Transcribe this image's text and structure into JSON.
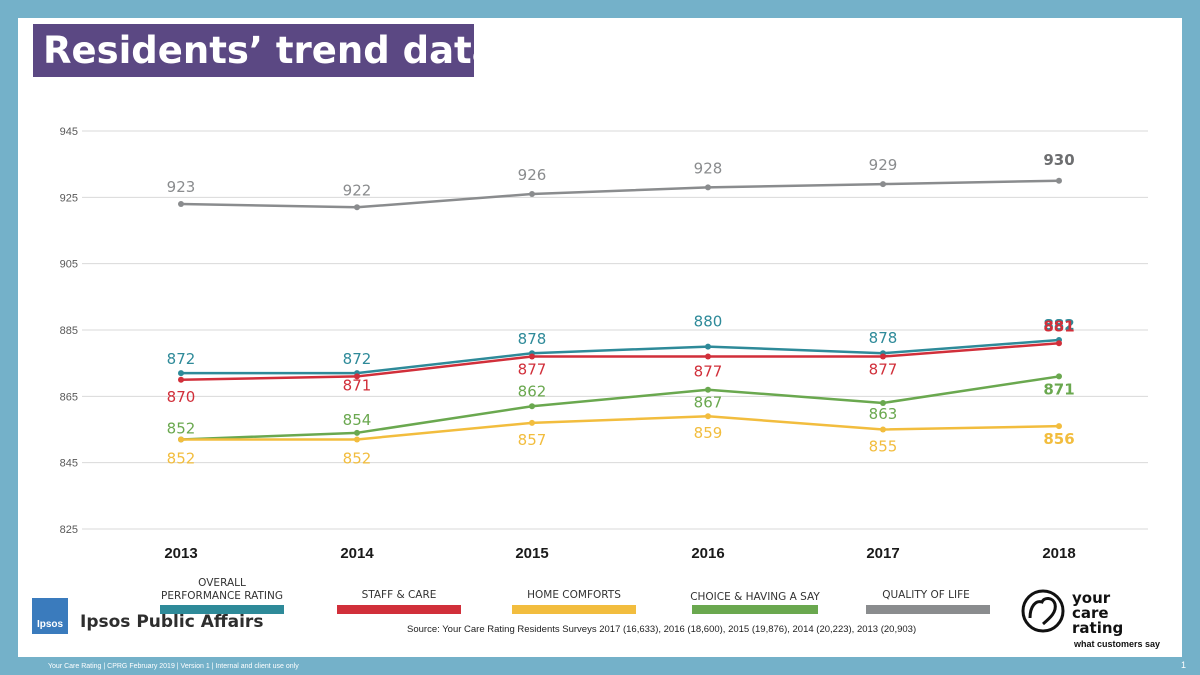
{
  "title": "Residents’ trend data",
  "colors": {
    "overall": "#2e8a99",
    "staff": "#d12f3a",
    "home": "#f2bd3e",
    "choice": "#6aa84f",
    "quality": "#8a8c8e",
    "title_bg": "#5b4883",
    "frame": "#74b1c9"
  },
  "chart_data": {
    "type": "line",
    "categories": [
      "2013",
      "2014",
      "2015",
      "2016",
      "2017",
      "2018"
    ],
    "ylim": [
      825,
      945
    ],
    "yticks": [
      "825",
      "845",
      "865",
      "885",
      "905",
      "925",
      "945"
    ],
    "series": [
      {
        "key": "quality",
        "name": "QUALITY OF LIFE",
        "values": [
          923,
          922,
          926,
          928,
          929,
          930
        ],
        "labels": [
          "923",
          "922",
          "926",
          "928",
          "929",
          "930"
        ],
        "label_pos": "above"
      },
      {
        "key": "overall",
        "name": "OVERALL PERFORMANCE RATING",
        "values": [
          872,
          872,
          878,
          880,
          878,
          882
        ],
        "labels": [
          "872",
          "872",
          "878",
          "880",
          "878",
          "882"
        ],
        "label_pos": "above"
      },
      {
        "key": "staff",
        "name": "STAFF & CARE",
        "values": [
          870,
          871,
          877,
          877,
          877,
          881
        ],
        "labels": [
          "870",
          "871",
          "877",
          "877",
          "877",
          "881"
        ],
        "label_pos": "below"
      },
      {
        "key": "choice",
        "name": "CHOICE & HAVING A SAY",
        "values": [
          852,
          854,
          862,
          867,
          863,
          871
        ],
        "labels": [
          "852",
          "854",
          "862",
          "867",
          "863",
          "871"
        ],
        "label_pos": "above"
      },
      {
        "key": "home",
        "name": "HOME COMFORTS",
        "values": [
          852,
          852,
          857,
          859,
          855,
          856
        ],
        "labels": [
          "852",
          "852",
          "857",
          "859",
          "855",
          "856"
        ],
        "label_pos": "below"
      }
    ]
  },
  "legend": [
    {
      "key": "overall",
      "label": "OVERALL PERFORMANCE RATING"
    },
    {
      "key": "staff",
      "label": "STAFF & CARE"
    },
    {
      "key": "home",
      "label": "HOME COMFORTS"
    },
    {
      "key": "choice",
      "label": "CHOICE & HAVING A SAY"
    },
    {
      "key": "quality",
      "label": "QUALITY OF LIFE"
    }
  ],
  "source": "Source: Your Care Rating Residents Surveys 2017 (16,633), 2016 (18,600), 2015 (19,876), 2014 (20,223), 2013 (20,903)",
  "footer": "Your Care Rating | CPRG February 2019 | Version 1 | Internal and client use only",
  "page_number": "1",
  "ipsos": {
    "logo_text": "Ipsos",
    "name": "Ipsos Public Affairs"
  },
  "ycr": {
    "word1": "your",
    "word2": "care",
    "word3": "rating",
    "tagline": "what customers say",
    "icon": "heart-face-icon"
  }
}
